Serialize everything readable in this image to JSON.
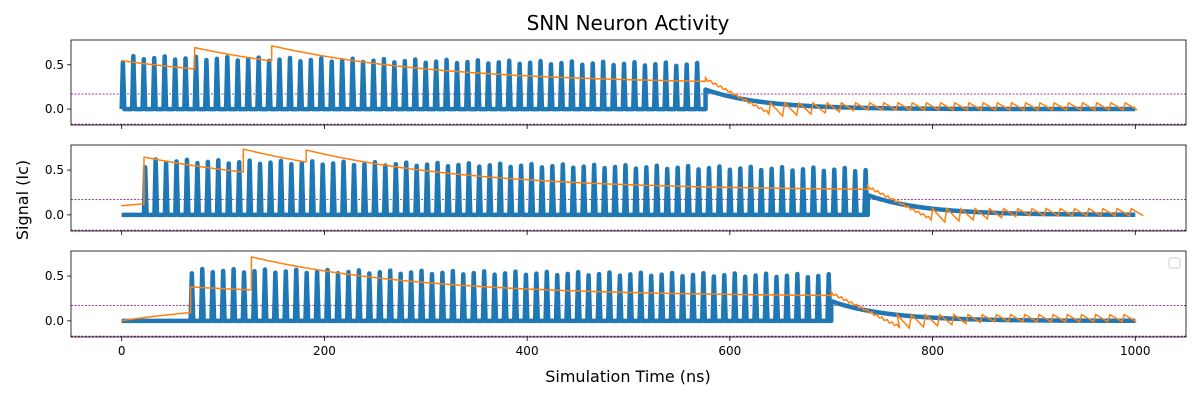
{
  "chart_data": {
    "type": "line",
    "title": "SNN Neuron Activity",
    "xlabel": "Simulation Time (ns)",
    "ylabel": "Signal (Ic)",
    "xlim": [
      -50,
      1050
    ],
    "x_ticks": [
      0,
      200,
      400,
      600,
      800,
      1000
    ],
    "y_ticks": [
      0.0,
      0.5
    ],
    "y_tick_labels": [
      "0.0",
      "0.5"
    ],
    "grid": false,
    "legend": {
      "placement": "upper right",
      "entries": []
    },
    "colors": {
      "spikes": "#1f77b4",
      "signal": "#ff7f0e",
      "threshold": "#800080"
    },
    "panels": [
      {
        "ylim": [
          -0.18,
          0.78
        ],
        "thresholds": [
          0.17,
          -0.17
        ],
        "spikes": {
          "start": 0,
          "end": 576,
          "period": 10.3,
          "first_peak": 0.53,
          "peak_mid": 0.58,
          "peak_end": 0.5,
          "decay_end": 1000,
          "decay_start_value": 0.22
        },
        "signal": {
          "start_value": 0.55,
          "jumps": [
            {
              "x": 72,
              "value": 0.7
            },
            {
              "x": 148,
              "value": 0.72
            }
          ],
          "settle_value": 0.28,
          "dip_x": 640,
          "dip_value": -0.08,
          "tail_low": -0.01,
          "tail_high": 0.07
        }
      },
      {
        "ylim": [
          -0.18,
          0.78
        ],
        "thresholds": [
          0.17,
          -0.17
        ],
        "spikes": {
          "start": 22,
          "end": 736,
          "period": 10.3,
          "first_peak": 0.53,
          "peak_mid": 0.6,
          "peak_end": 0.5,
          "decay_end": 1000,
          "decay_start_value": 0.22
        },
        "signal": {
          "start_value": 0.1,
          "jumps": [
            {
              "x": 22,
              "value": 0.65
            },
            {
              "x": 120,
              "value": 0.74
            },
            {
              "x": 182,
              "value": 0.73
            }
          ],
          "settle_value": 0.27,
          "dip_x": 800,
          "dip_value": -0.08,
          "tail_low": -0.01,
          "tail_high": 0.07
        }
      },
      {
        "ylim": [
          -0.18,
          0.78
        ],
        "thresholds": [
          0.17,
          -0.17
        ],
        "spikes": {
          "start": 68,
          "end": 700,
          "period": 10.3,
          "first_peak": 0.53,
          "peak_mid": 0.56,
          "peak_end": 0.5,
          "decay_end": 1000,
          "decay_start_value": 0.22
        },
        "signal": {
          "start_value": 0.0,
          "jumps": [
            {
              "x": 68,
              "value": 0.38
            },
            {
              "x": 128,
              "value": 0.72
            }
          ],
          "settle_value": 0.27,
          "dip_x": 765,
          "dip_value": -0.08,
          "tail_low": -0.01,
          "tail_high": 0.07
        }
      }
    ]
  }
}
